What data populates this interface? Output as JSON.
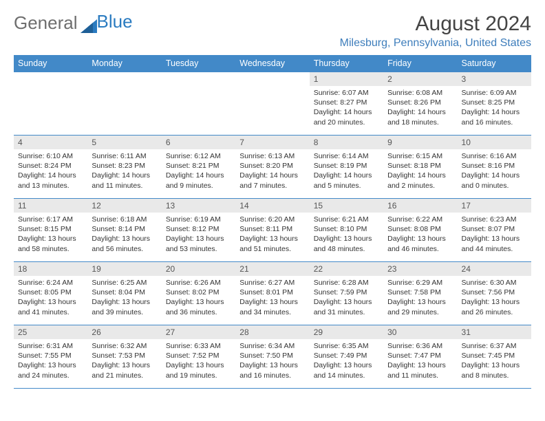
{
  "brand": {
    "part1": "General",
    "part2": "Blue"
  },
  "title": "August 2024",
  "location": "Milesburg, Pennsylvania, United States",
  "colors": {
    "header_bg": "#4289c8",
    "header_text": "#ffffff",
    "daynum_bg": "#e9e9e9",
    "border": "#4289c8",
    "location": "#3d7dbb",
    "logo_gray": "#6e6e6e",
    "logo_blue": "#2a7bc0"
  },
  "columns": [
    "Sunday",
    "Monday",
    "Tuesday",
    "Wednesday",
    "Thursday",
    "Friday",
    "Saturday"
  ],
  "weeks": [
    [
      {
        "day": "",
        "sunrise": "",
        "sunset": "",
        "daylight": ""
      },
      {
        "day": "",
        "sunrise": "",
        "sunset": "",
        "daylight": ""
      },
      {
        "day": "",
        "sunrise": "",
        "sunset": "",
        "daylight": ""
      },
      {
        "day": "",
        "sunrise": "",
        "sunset": "",
        "daylight": ""
      },
      {
        "day": "1",
        "sunrise": "Sunrise: 6:07 AM",
        "sunset": "Sunset: 8:27 PM",
        "daylight": "Daylight: 14 hours and 20 minutes."
      },
      {
        "day": "2",
        "sunrise": "Sunrise: 6:08 AM",
        "sunset": "Sunset: 8:26 PM",
        "daylight": "Daylight: 14 hours and 18 minutes."
      },
      {
        "day": "3",
        "sunrise": "Sunrise: 6:09 AM",
        "sunset": "Sunset: 8:25 PM",
        "daylight": "Daylight: 14 hours and 16 minutes."
      }
    ],
    [
      {
        "day": "4",
        "sunrise": "Sunrise: 6:10 AM",
        "sunset": "Sunset: 8:24 PM",
        "daylight": "Daylight: 14 hours and 13 minutes."
      },
      {
        "day": "5",
        "sunrise": "Sunrise: 6:11 AM",
        "sunset": "Sunset: 8:23 PM",
        "daylight": "Daylight: 14 hours and 11 minutes."
      },
      {
        "day": "6",
        "sunrise": "Sunrise: 6:12 AM",
        "sunset": "Sunset: 8:21 PM",
        "daylight": "Daylight: 14 hours and 9 minutes."
      },
      {
        "day": "7",
        "sunrise": "Sunrise: 6:13 AM",
        "sunset": "Sunset: 8:20 PM",
        "daylight": "Daylight: 14 hours and 7 minutes."
      },
      {
        "day": "8",
        "sunrise": "Sunrise: 6:14 AM",
        "sunset": "Sunset: 8:19 PM",
        "daylight": "Daylight: 14 hours and 5 minutes."
      },
      {
        "day": "9",
        "sunrise": "Sunrise: 6:15 AM",
        "sunset": "Sunset: 8:18 PM",
        "daylight": "Daylight: 14 hours and 2 minutes."
      },
      {
        "day": "10",
        "sunrise": "Sunrise: 6:16 AM",
        "sunset": "Sunset: 8:16 PM",
        "daylight": "Daylight: 14 hours and 0 minutes."
      }
    ],
    [
      {
        "day": "11",
        "sunrise": "Sunrise: 6:17 AM",
        "sunset": "Sunset: 8:15 PM",
        "daylight": "Daylight: 13 hours and 58 minutes."
      },
      {
        "day": "12",
        "sunrise": "Sunrise: 6:18 AM",
        "sunset": "Sunset: 8:14 PM",
        "daylight": "Daylight: 13 hours and 56 minutes."
      },
      {
        "day": "13",
        "sunrise": "Sunrise: 6:19 AM",
        "sunset": "Sunset: 8:12 PM",
        "daylight": "Daylight: 13 hours and 53 minutes."
      },
      {
        "day": "14",
        "sunrise": "Sunrise: 6:20 AM",
        "sunset": "Sunset: 8:11 PM",
        "daylight": "Daylight: 13 hours and 51 minutes."
      },
      {
        "day": "15",
        "sunrise": "Sunrise: 6:21 AM",
        "sunset": "Sunset: 8:10 PM",
        "daylight": "Daylight: 13 hours and 48 minutes."
      },
      {
        "day": "16",
        "sunrise": "Sunrise: 6:22 AM",
        "sunset": "Sunset: 8:08 PM",
        "daylight": "Daylight: 13 hours and 46 minutes."
      },
      {
        "day": "17",
        "sunrise": "Sunrise: 6:23 AM",
        "sunset": "Sunset: 8:07 PM",
        "daylight": "Daylight: 13 hours and 44 minutes."
      }
    ],
    [
      {
        "day": "18",
        "sunrise": "Sunrise: 6:24 AM",
        "sunset": "Sunset: 8:05 PM",
        "daylight": "Daylight: 13 hours and 41 minutes."
      },
      {
        "day": "19",
        "sunrise": "Sunrise: 6:25 AM",
        "sunset": "Sunset: 8:04 PM",
        "daylight": "Daylight: 13 hours and 39 minutes."
      },
      {
        "day": "20",
        "sunrise": "Sunrise: 6:26 AM",
        "sunset": "Sunset: 8:02 PM",
        "daylight": "Daylight: 13 hours and 36 minutes."
      },
      {
        "day": "21",
        "sunrise": "Sunrise: 6:27 AM",
        "sunset": "Sunset: 8:01 PM",
        "daylight": "Daylight: 13 hours and 34 minutes."
      },
      {
        "day": "22",
        "sunrise": "Sunrise: 6:28 AM",
        "sunset": "Sunset: 7:59 PM",
        "daylight": "Daylight: 13 hours and 31 minutes."
      },
      {
        "day": "23",
        "sunrise": "Sunrise: 6:29 AM",
        "sunset": "Sunset: 7:58 PM",
        "daylight": "Daylight: 13 hours and 29 minutes."
      },
      {
        "day": "24",
        "sunrise": "Sunrise: 6:30 AM",
        "sunset": "Sunset: 7:56 PM",
        "daylight": "Daylight: 13 hours and 26 minutes."
      }
    ],
    [
      {
        "day": "25",
        "sunrise": "Sunrise: 6:31 AM",
        "sunset": "Sunset: 7:55 PM",
        "daylight": "Daylight: 13 hours and 24 minutes."
      },
      {
        "day": "26",
        "sunrise": "Sunrise: 6:32 AM",
        "sunset": "Sunset: 7:53 PM",
        "daylight": "Daylight: 13 hours and 21 minutes."
      },
      {
        "day": "27",
        "sunrise": "Sunrise: 6:33 AM",
        "sunset": "Sunset: 7:52 PM",
        "daylight": "Daylight: 13 hours and 19 minutes."
      },
      {
        "day": "28",
        "sunrise": "Sunrise: 6:34 AM",
        "sunset": "Sunset: 7:50 PM",
        "daylight": "Daylight: 13 hours and 16 minutes."
      },
      {
        "day": "29",
        "sunrise": "Sunrise: 6:35 AM",
        "sunset": "Sunset: 7:49 PM",
        "daylight": "Daylight: 13 hours and 14 minutes."
      },
      {
        "day": "30",
        "sunrise": "Sunrise: 6:36 AM",
        "sunset": "Sunset: 7:47 PM",
        "daylight": "Daylight: 13 hours and 11 minutes."
      },
      {
        "day": "31",
        "sunrise": "Sunrise: 6:37 AM",
        "sunset": "Sunset: 7:45 PM",
        "daylight": "Daylight: 13 hours and 8 minutes."
      }
    ]
  ]
}
